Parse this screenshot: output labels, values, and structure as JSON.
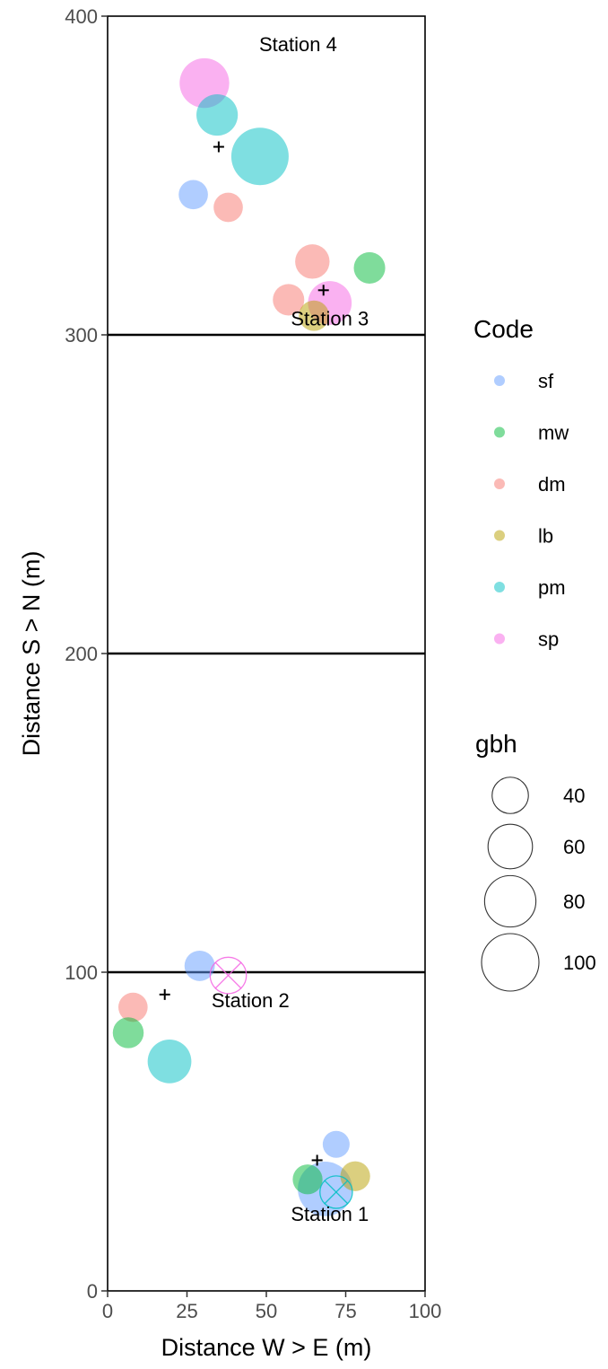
{
  "chart_data": {
    "type": "scatter",
    "xlabel": "Distance W > E (m)",
    "ylabel": "Distance S > N (m)",
    "xlim": [
      0,
      100
    ],
    "ylim": [
      0,
      400
    ],
    "x_ticks": [
      0,
      25,
      50,
      75,
      100
    ],
    "y_ticks": [
      0,
      100,
      200,
      300,
      400
    ],
    "grid": false,
    "station_boundaries": [
      100,
      200,
      300
    ],
    "legend_position": "right",
    "color_legend": {
      "title": "Code",
      "entries": [
        {
          "label": "sf",
          "color": "#619CFF"
        },
        {
          "label": "mw",
          "color": "#00BA38"
        },
        {
          "label": "dm",
          "color": "#F8766D"
        },
        {
          "label": "lb",
          "color": "#B79F00"
        },
        {
          "label": "pm",
          "color": "#00BFC4"
        },
        {
          "label": "sp",
          "color": "#F564E3"
        }
      ]
    },
    "size_legend": {
      "title": "gbh",
      "entries": [
        {
          "label": "40",
          "value": 40
        },
        {
          "label": "60",
          "value": 60
        },
        {
          "label": "80",
          "value": 80
        },
        {
          "label": "100",
          "value": 100
        }
      ]
    },
    "annotations": [
      {
        "text": "Station 1",
        "x": 70,
        "y": 22
      },
      {
        "text": "Station 2",
        "x": 45,
        "y": 89
      },
      {
        "text": "Station 3",
        "x": 70,
        "y": 303
      },
      {
        "text": "Station 4",
        "x": 60,
        "y": 389
      }
    ],
    "centers": [
      {
        "x": 66,
        "y": 41
      },
      {
        "x": 18,
        "y": 93
      },
      {
        "x": 68,
        "y": 314
      },
      {
        "x": 35,
        "y": 359
      }
    ],
    "points": [
      {
        "code": "sf",
        "x": 72,
        "y": 46,
        "gbh": 22
      },
      {
        "code": "sf",
        "x": 68.5,
        "y": 32,
        "gbh": 90
      },
      {
        "code": "mw",
        "x": 63,
        "y": 35,
        "gbh": 27
      },
      {
        "code": "lb",
        "x": 78,
        "y": 36,
        "gbh": 27
      },
      {
        "code": "pm",
        "x": 72,
        "y": 31,
        "gbh": 32,
        "dead": true
      },
      {
        "code": "sf",
        "x": 29,
        "y": 102,
        "gbh": 28
      },
      {
        "code": "sp",
        "x": 38,
        "y": 99,
        "gbh": 40,
        "dead": true
      },
      {
        "code": "dm",
        "x": 8,
        "y": 89,
        "gbh": 26
      },
      {
        "code": "mw",
        "x": 6.5,
        "y": 81,
        "gbh": 29
      },
      {
        "code": "pm",
        "x": 19.5,
        "y": 72,
        "gbh": 58
      },
      {
        "code": "dm",
        "x": 64.5,
        "y": 323,
        "gbh": 36
      },
      {
        "code": "mw",
        "x": 82.5,
        "y": 321,
        "gbh": 30
      },
      {
        "code": "dm",
        "x": 57,
        "y": 311,
        "gbh": 30
      },
      {
        "code": "sp",
        "x": 70,
        "y": 310,
        "gbh": 58
      },
      {
        "code": "lb",
        "x": 65,
        "y": 306,
        "gbh": 28
      },
      {
        "code": "sp",
        "x": 30.5,
        "y": 379,
        "gbh": 75
      },
      {
        "code": "pm",
        "x": 34.5,
        "y": 369,
        "gbh": 52
      },
      {
        "code": "pm",
        "x": 48,
        "y": 356,
        "gbh": 100
      },
      {
        "code": "sf",
        "x": 27,
        "y": 344,
        "gbh": 26
      },
      {
        "code": "dm",
        "x": 38,
        "y": 340,
        "gbh": 26
      }
    ]
  }
}
